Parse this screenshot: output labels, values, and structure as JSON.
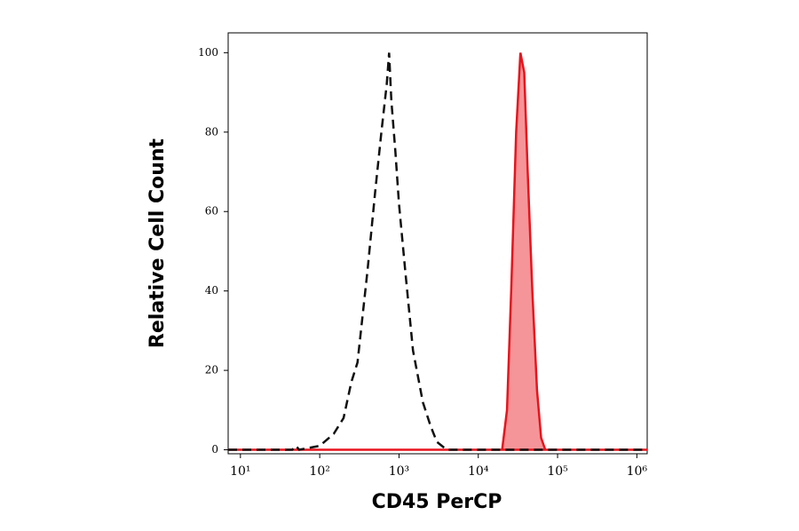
{
  "chart_data": {
    "type": "histogram-overlay",
    "x_label": "CD45 PerCP",
    "y_label": "Relative Cell Count",
    "xscale": "log",
    "xlim": [
      7,
      1350000
    ],
    "ylim": [
      -1,
      105
    ],
    "xticks": [
      {
        "value": 10,
        "label": "10¹"
      },
      {
        "value": 100,
        "label": "10²"
      },
      {
        "value": 1000,
        "label": "10³"
      },
      {
        "value": 10000,
        "label": "10⁴"
      },
      {
        "value": 100000,
        "label": "10⁵"
      },
      {
        "value": 1000000,
        "label": "10⁶"
      }
    ],
    "yticks": [
      0,
      20,
      40,
      60,
      80,
      100
    ],
    "series": [
      {
        "color": "#e8141c",
        "style": "filled",
        "x": [
          7,
          10000,
          20000,
          23000,
          26000,
          30000,
          34000,
          38000,
          42000,
          48000,
          55000,
          62000,
          70000,
          1350000
        ],
        "values": [
          0,
          0,
          0,
          10,
          40,
          80,
          100,
          95,
          70,
          40,
          15,
          3,
          0,
          0
        ]
      },
      {
        "color": "#111111",
        "style": "dashed",
        "x": [
          7,
          45,
          50,
          55,
          100,
          150,
          200,
          250,
          300,
          400,
          500,
          600,
          700,
          750,
          800,
          900,
          1000,
          1200,
          1500,
          2000,
          2500,
          3000,
          4000,
          1350000
        ],
        "values": [
          0,
          0,
          1,
          0,
          1,
          4,
          8,
          17,
          22,
          45,
          65,
          80,
          92,
          100,
          88,
          75,
          62,
          45,
          25,
          12,
          6,
          2,
          0,
          0
        ]
      }
    ]
  }
}
